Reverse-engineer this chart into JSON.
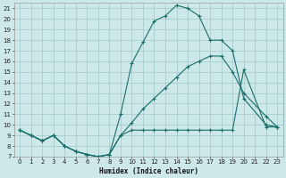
{
  "xlabel": "Humidex (Indice chaleur)",
  "bg_color": "#cce8e8",
  "grid_color": "#aacccc",
  "line_color": "#1a6e6a",
  "xlim": [
    -0.5,
    23.5
  ],
  "ylim": [
    7,
    21.5
  ],
  "xticks": [
    0,
    1,
    2,
    3,
    4,
    5,
    6,
    7,
    8,
    9,
    10,
    11,
    12,
    13,
    14,
    15,
    16,
    17,
    18,
    19,
    20,
    21,
    22,
    23
  ],
  "yticks": [
    7,
    8,
    9,
    10,
    11,
    12,
    13,
    14,
    15,
    16,
    17,
    18,
    19,
    20,
    21
  ],
  "line1_x": [
    0,
    1,
    2,
    3,
    4,
    5,
    6,
    7,
    8,
    9,
    10,
    11,
    12,
    13,
    14,
    15,
    16,
    17,
    18,
    19,
    20,
    22,
    23
  ],
  "line1_y": [
    9.5,
    9.0,
    8.5,
    9.0,
    8.0,
    7.5,
    7.2,
    7.0,
    7.2,
    11.0,
    15.8,
    17.8,
    19.8,
    20.3,
    21.3,
    21.0,
    20.3,
    18.0,
    18.0,
    17.0,
    12.5,
    10.0,
    9.8
  ],
  "line2_x": [
    0,
    1,
    2,
    3,
    4,
    5,
    6,
    7,
    8,
    9,
    10,
    11,
    12,
    13,
    14,
    15,
    16,
    17,
    18,
    19,
    20,
    22,
    23
  ],
  "line2_y": [
    9.5,
    9.0,
    8.5,
    9.0,
    8.0,
    7.5,
    7.2,
    7.0,
    7.2,
    9.0,
    10.2,
    11.5,
    12.5,
    13.5,
    14.5,
    15.5,
    16.0,
    16.5,
    16.5,
    15.0,
    13.0,
    10.8,
    9.8
  ],
  "line3_x": [
    0,
    1,
    2,
    3,
    4,
    5,
    6,
    7,
    8,
    9,
    10,
    11,
    12,
    13,
    14,
    15,
    16,
    17,
    18,
    19,
    20,
    22,
    23
  ],
  "line3_y": [
    9.5,
    9.0,
    8.5,
    9.0,
    8.0,
    7.5,
    7.2,
    7.0,
    7.2,
    9.0,
    9.5,
    9.5,
    9.5,
    9.5,
    9.5,
    9.5,
    9.5,
    9.5,
    9.5,
    9.5,
    15.2,
    9.8,
    9.8
  ]
}
